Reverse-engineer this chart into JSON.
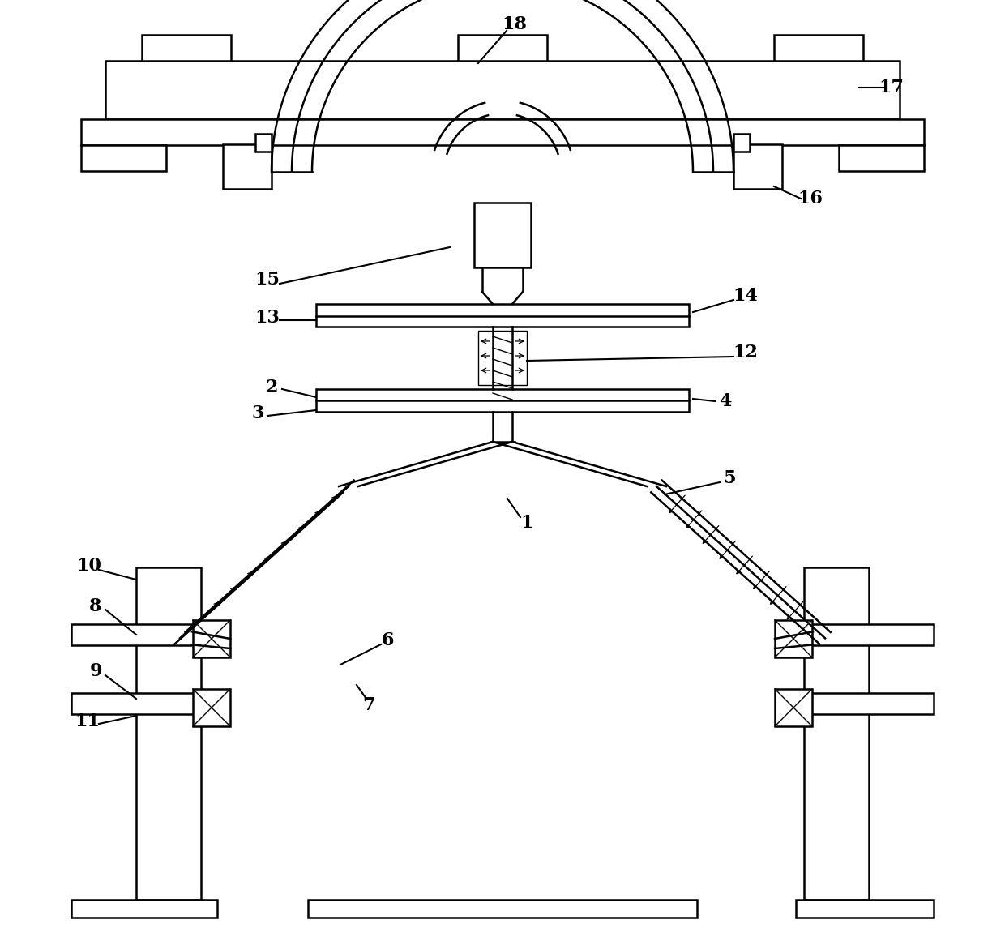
{
  "bg_color": "#ffffff",
  "line_color": "#000000",
  "lw": 1.8,
  "lw_thin": 1.0,
  "fig_width": 12.4,
  "fig_height": 11.72,
  "dpi": 100
}
